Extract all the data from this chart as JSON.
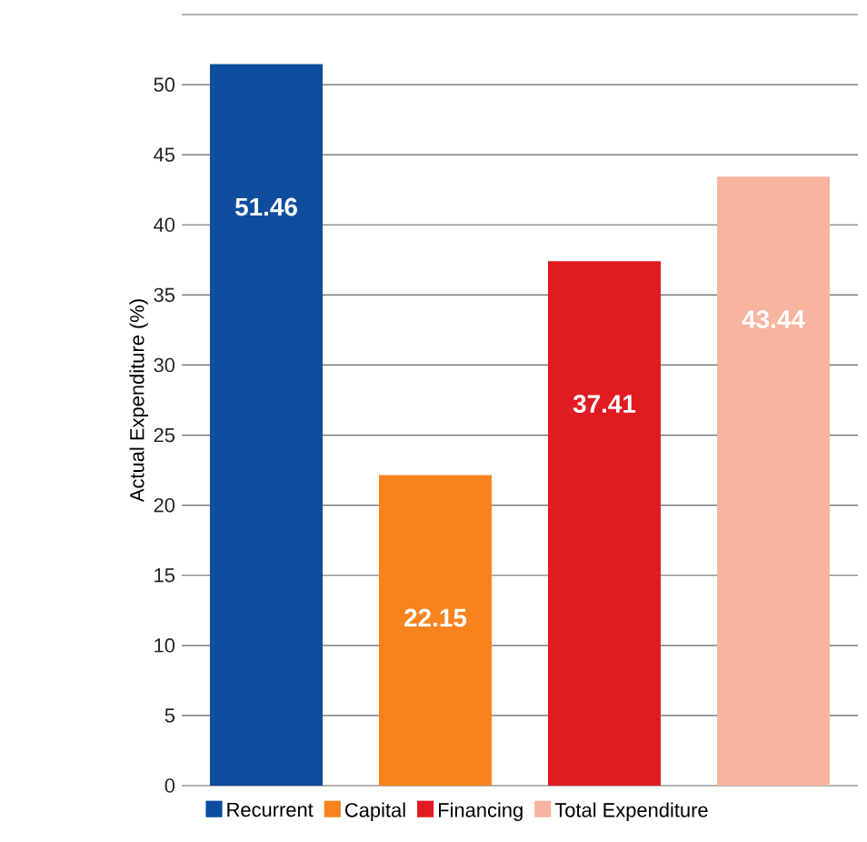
{
  "chart_data": {
    "type": "bar",
    "ylabel": "Actual Expenditure (%)",
    "categories": [
      null,
      null,
      null,
      null
    ],
    "series": [
      {
        "name": "Recurrent",
        "color": "#0e4c9e",
        "values": [
          51.46,
          null,
          null,
          null
        ]
      },
      {
        "name": "Capital",
        "color": "#f7831f",
        "values": [
          null,
          22.15,
          null,
          null
        ]
      },
      {
        "name": "Financing",
        "color": "#e01b22",
        "values": [
          null,
          null,
          37.41,
          null
        ]
      },
      {
        "name": "Total Expenditure",
        "color": "#f7b49e",
        "values": [
          null,
          null,
          null,
          43.44
        ]
      }
    ],
    "ylim": [
      0,
      55
    ],
    "yticks": [
      0,
      5,
      10,
      15,
      20,
      25,
      30,
      35,
      40,
      45,
      50,
      {
        "value": 55,
        "label": null
      }
    ],
    "grid": "y",
    "legend": "bottom",
    "data_labels": true
  }
}
